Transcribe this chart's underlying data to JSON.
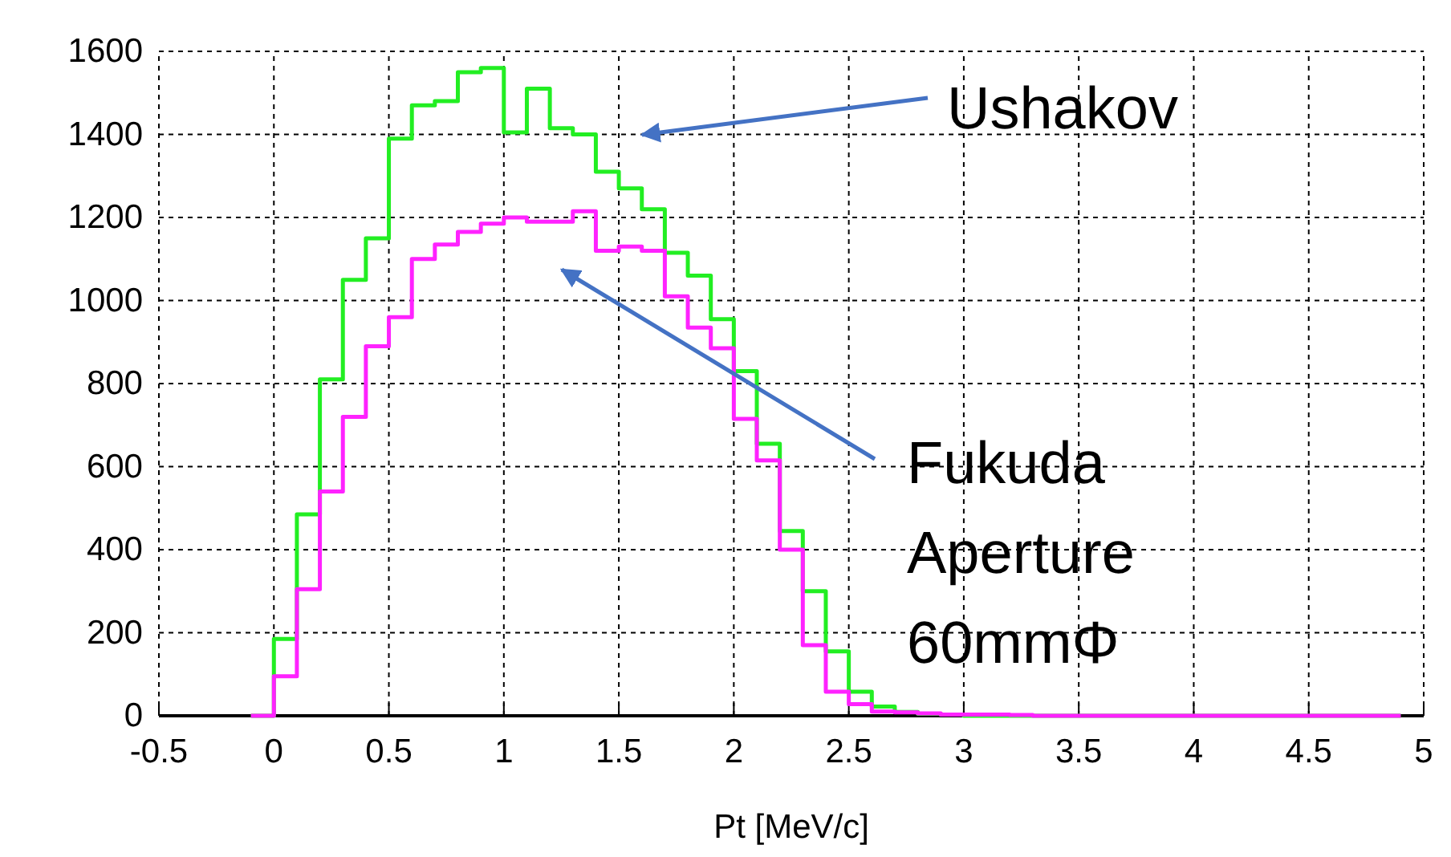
{
  "chart_data": {
    "type": "histogram",
    "xlabel": "Pt [MeV/c]",
    "bins": [
      -0.1,
      0,
      0.1,
      0.2,
      0.3,
      0.4,
      0.5,
      0.6,
      0.7,
      0.8,
      0.9,
      1,
      1.1,
      1.2,
      1.3,
      1.4,
      1.5,
      1.6,
      1.7,
      1.8,
      1.9,
      2,
      2.1,
      2.2,
      2.3,
      2.4,
      2.5,
      2.6,
      2.7,
      2.8,
      2.9,
      3,
      3.1,
      3.2,
      3.3,
      3.4,
      3.5,
      3.6,
      3.7,
      3.8,
      3.9,
      4,
      4.1,
      4.2,
      4.3,
      4.4,
      4.5,
      4.6,
      4.7,
      4.8,
      4.9
    ],
    "series": [
      {
        "color": "#22ee22",
        "values": [
          0,
          185,
          485,
          810,
          1050,
          1150,
          1390,
          1470,
          1480,
          1550,
          1560,
          1405,
          1510,
          1415,
          1400,
          1310,
          1270,
          1220,
          1115,
          1060,
          955,
          830,
          655,
          445,
          300,
          155,
          58,
          22,
          9,
          5,
          3,
          0,
          0,
          0,
          0,
          0,
          0,
          0,
          0,
          0,
          0,
          0,
          0,
          0,
          0,
          0,
          0,
          0,
          0,
          0
        ]
      },
      {
        "color": "#ff22ff",
        "values": [
          0,
          95,
          305,
          540,
          720,
          890,
          960,
          1100,
          1135,
          1165,
          1185,
          1200,
          1190,
          1190,
          1215,
          1120,
          1130,
          1120,
          1010,
          935,
          885,
          715,
          615,
          400,
          170,
          58,
          28,
          10,
          8,
          6,
          3,
          3,
          3,
          2,
          0,
          0,
          0,
          0,
          0,
          0,
          0,
          0,
          0,
          0,
          0,
          0,
          0,
          0,
          0,
          0
        ]
      }
    ],
    "xlim": [
      -0.5,
      5
    ],
    "xticks": [
      -0.5,
      0,
      0.5,
      1,
      1.5,
      2,
      2.5,
      3,
      3.5,
      4,
      4.5,
      5
    ],
    "ylim": [
      0,
      1600
    ],
    "yticks": [
      0,
      200,
      400,
      600,
      800,
      1000,
      1200,
      1400,
      1600
    ],
    "annotations": [
      "Ushakov",
      "Fukuda\nAperture\n60mmΦ"
    ],
    "grid": true
  }
}
